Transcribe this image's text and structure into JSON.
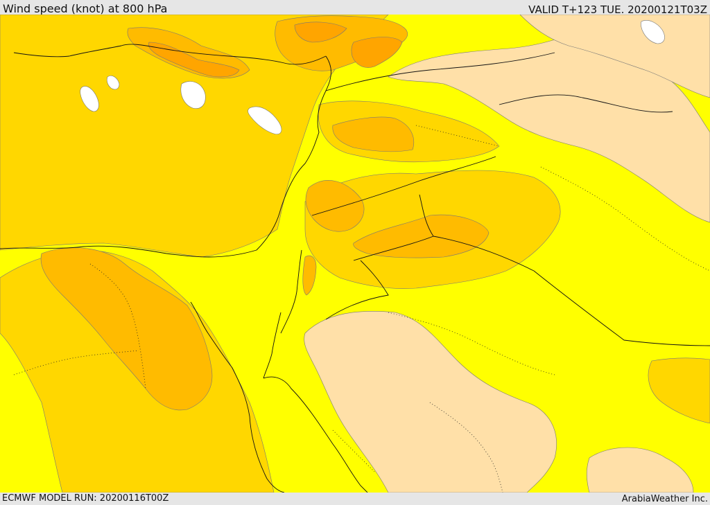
{
  "header": {
    "title": "Wind speed (knot) at 800 hPa",
    "valid_time": "VALID T+123 TUE. 20200121T03Z"
  },
  "footer": {
    "model_run": "ECMWF MODEL RUN: 20200116T00Z",
    "credit": "ArabiaWeather Inc."
  },
  "map": {
    "variable": "wind speed",
    "level": "800 hPa",
    "colors": {
      "very_light": "#ffe0a8",
      "light": "#ffff00",
      "medium": "#ffd700",
      "strong": "#ffbb00",
      "stronger": "#ffa500",
      "calm": "#ffffff"
    }
  }
}
